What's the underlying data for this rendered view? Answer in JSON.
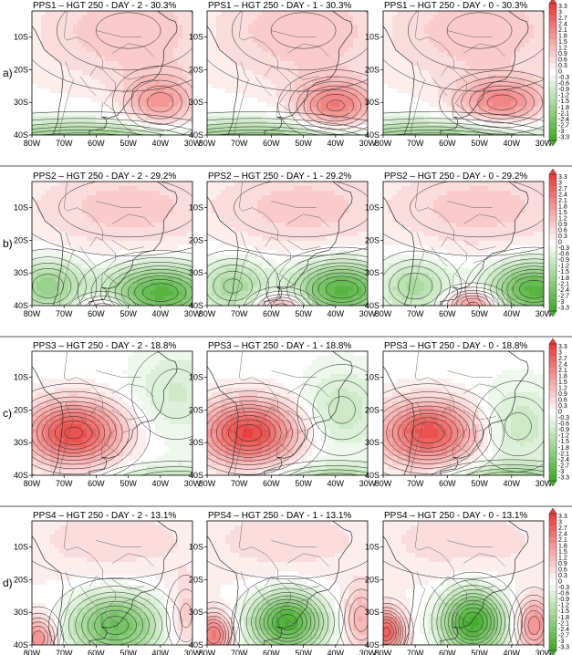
{
  "rows": [
    {
      "label": "a)",
      "panels": [
        {
          "title": "PPS1 – HGT 250 - DAY - 2 - 30.3%"
        },
        {
          "title": "PPS1 – HGT 250 - DAY - 1 - 30.3%"
        },
        {
          "title": "PPS1 – HGT 250 - DAY - 0 - 30.3%"
        }
      ]
    },
    {
      "label": "b)",
      "panels": [
        {
          "title": "PPS2 – HGT 250 - DAY - 2 - 29.2%"
        },
        {
          "title": "PPS2 – HGT 250 - DAY - 1 - 29.2%"
        },
        {
          "title": "PPS2 – HGT 250 - DAY - 0 - 29.2%"
        }
      ]
    },
    {
      "label": "c)",
      "panels": [
        {
          "title": "PPS3 – HGT 250 - DAY - 2 - 18.8%"
        },
        {
          "title": "PPS3 – HGT 250 - DAY - 1 - 18.8%"
        },
        {
          "title": "PPS3 – HGT 250 - DAY - 0 - 18.8%"
        }
      ]
    },
    {
      "label": "d)",
      "panels": [
        {
          "title": "PPS4 – HGT 250 - DAY - 2 - 13.1%"
        },
        {
          "title": "PPS4 – HGT 250 - DAY - 1 - 13.1%"
        },
        {
          "title": "PPS4 – HGT 250 - DAY - 0 - 13.1%"
        }
      ]
    }
  ],
  "lon_ticks": [
    "80W",
    "70W",
    "60W",
    "50W",
    "40W",
    "30W"
  ],
  "lat_ticks": [
    "10S",
    "20S",
    "30S",
    "40S"
  ],
  "colorbar_labels": [
    "3.3",
    "3",
    "2.7",
    "2.4",
    "2.1",
    "1.8",
    "1.5",
    "1.2",
    "0.9",
    "0.6",
    "0.3",
    "0",
    "-0.3",
    "-0.6",
    "-0.9",
    "-1.2",
    "-1.5",
    "-1.8",
    "-2.1",
    "-2.4",
    "-2.7",
    "-3",
    "-3.3"
  ],
  "colors": {
    "positive": "#e8413f",
    "neutral": "#ffffff",
    "negative": "#46ad2e"
  },
  "fields": [
    [
      {
        "centers": [
          {
            "lon": -40,
            "lat": -30,
            "amp": 1.7,
            "sx": 8,
            "sy": 6
          },
          {
            "lon": -50,
            "lat": -8,
            "amp": 1.0,
            "sx": 22,
            "sy": 12
          },
          {
            "lon": -65,
            "lat": -46,
            "amp": -3.3,
            "sx": 26,
            "sy": 6
          }
        ]
      },
      {
        "centers": [
          {
            "lon": -40,
            "lat": -31,
            "amp": 2.2,
            "sx": 9,
            "sy": 5.5
          },
          {
            "lon": -50,
            "lat": -8,
            "amp": 1.0,
            "sx": 22,
            "sy": 12
          },
          {
            "lon": -65,
            "lat": -46,
            "amp": -3.3,
            "sx": 26,
            "sy": 6
          }
        ]
      },
      {
        "centers": [
          {
            "lon": -43,
            "lat": -30,
            "amp": 2.0,
            "sx": 10,
            "sy": 5
          },
          {
            "lon": -50,
            "lat": -8,
            "amp": 1.0,
            "sx": 22,
            "sy": 12
          },
          {
            "lon": -65,
            "lat": -46,
            "amp": -3.3,
            "sx": 26,
            "sy": 6
          }
        ]
      }
    ],
    [
      {
        "centers": [
          {
            "lon": -40,
            "lat": -36,
            "amp": -3.0,
            "sx": 12,
            "sy": 6
          },
          {
            "lon": -75,
            "lat": -34,
            "amp": -1.8,
            "sx": 8,
            "sy": 6
          },
          {
            "lon": -58,
            "lat": -42,
            "amp": 1.6,
            "sx": 6,
            "sy": 3.5
          },
          {
            "lon": -50,
            "lat": -10,
            "amp": 0.9,
            "sx": 24,
            "sy": 10
          }
        ]
      },
      {
        "centers": [
          {
            "lon": -38,
            "lat": -35,
            "amp": -3.0,
            "sx": 11,
            "sy": 6
          },
          {
            "lon": -72,
            "lat": -34,
            "amp": -1.6,
            "sx": 8,
            "sy": 6
          },
          {
            "lon": -57,
            "lat": -41,
            "amp": 2.0,
            "sx": 6,
            "sy": 3.5
          },
          {
            "lon": -50,
            "lat": -10,
            "amp": 0.9,
            "sx": 24,
            "sy": 10
          }
        ]
      },
      {
        "centers": [
          {
            "lon": -33,
            "lat": -35,
            "amp": -3.0,
            "sx": 10,
            "sy": 6
          },
          {
            "lon": -70,
            "lat": -34,
            "amp": -1.5,
            "sx": 8,
            "sy": 6
          },
          {
            "lon": -52,
            "lat": -40,
            "amp": 2.2,
            "sx": 6,
            "sy": 3.5
          },
          {
            "lon": -50,
            "lat": -10,
            "amp": 0.9,
            "sx": 24,
            "sy": 10
          }
        ]
      }
    ],
    [
      {
        "centers": [
          {
            "lon": -67,
            "lat": -27,
            "amp": 3.1,
            "sx": 11,
            "sy": 7
          },
          {
            "lon": -35,
            "lat": -43,
            "amp": -1.6,
            "sx": 14,
            "sy": 4
          },
          {
            "lon": -35,
            "lat": -15,
            "amp": -0.8,
            "sx": 10,
            "sy": 10
          }
        ]
      },
      {
        "centers": [
          {
            "lon": -67,
            "lat": -27,
            "amp": 3.2,
            "sx": 11,
            "sy": 7
          },
          {
            "lon": -40,
            "lat": -43,
            "amp": -1.8,
            "sx": 14,
            "sy": 4
          },
          {
            "lon": -38,
            "lat": -20,
            "amp": -1.0,
            "sx": 9,
            "sy": 9
          }
        ]
      },
      {
        "centers": [
          {
            "lon": -66,
            "lat": -27,
            "amp": 3.0,
            "sx": 11,
            "sy": 7
          },
          {
            "lon": -40,
            "lat": -43,
            "amp": -2.0,
            "sx": 14,
            "sy": 4
          },
          {
            "lon": -38,
            "lat": -25,
            "amp": -1.0,
            "sx": 9,
            "sy": 9
          }
        ]
      }
    ],
    [
      {
        "centers": [
          {
            "lon": -54,
            "lat": -34,
            "amp": -2.6,
            "sx": 10,
            "sy": 7
          },
          {
            "lon": -78,
            "lat": -38,
            "amp": 2.0,
            "sx": 4,
            "sy": 5
          },
          {
            "lon": -32,
            "lat": -31,
            "amp": 1.0,
            "sx": 4,
            "sy": 8
          },
          {
            "lon": -55,
            "lat": -8,
            "amp": 0.6,
            "sx": 25,
            "sy": 10
          }
        ]
      },
      {
        "centers": [
          {
            "lon": -55,
            "lat": -33,
            "amp": -3.2,
            "sx": 8,
            "sy": 6.5
          },
          {
            "lon": -78,
            "lat": -37,
            "amp": 2.4,
            "sx": 4,
            "sy": 5
          },
          {
            "lon": -32,
            "lat": -32,
            "amp": 1.4,
            "sx": 4,
            "sy": 7
          },
          {
            "lon": -55,
            "lat": -8,
            "amp": 0.6,
            "sx": 25,
            "sy": 10
          }
        ]
      },
      {
        "centers": [
          {
            "lon": -52,
            "lat": -33,
            "amp": -3.3,
            "sx": 7,
            "sy": 7
          },
          {
            "lon": -79,
            "lat": -36,
            "amp": 2.8,
            "sx": 4,
            "sy": 5
          },
          {
            "lon": -33,
            "lat": -34,
            "amp": 2.0,
            "sx": 4,
            "sy": 6
          },
          {
            "lon": -55,
            "lat": -8,
            "amp": 0.6,
            "sx": 25,
            "sy": 10
          }
        ]
      }
    ]
  ]
}
